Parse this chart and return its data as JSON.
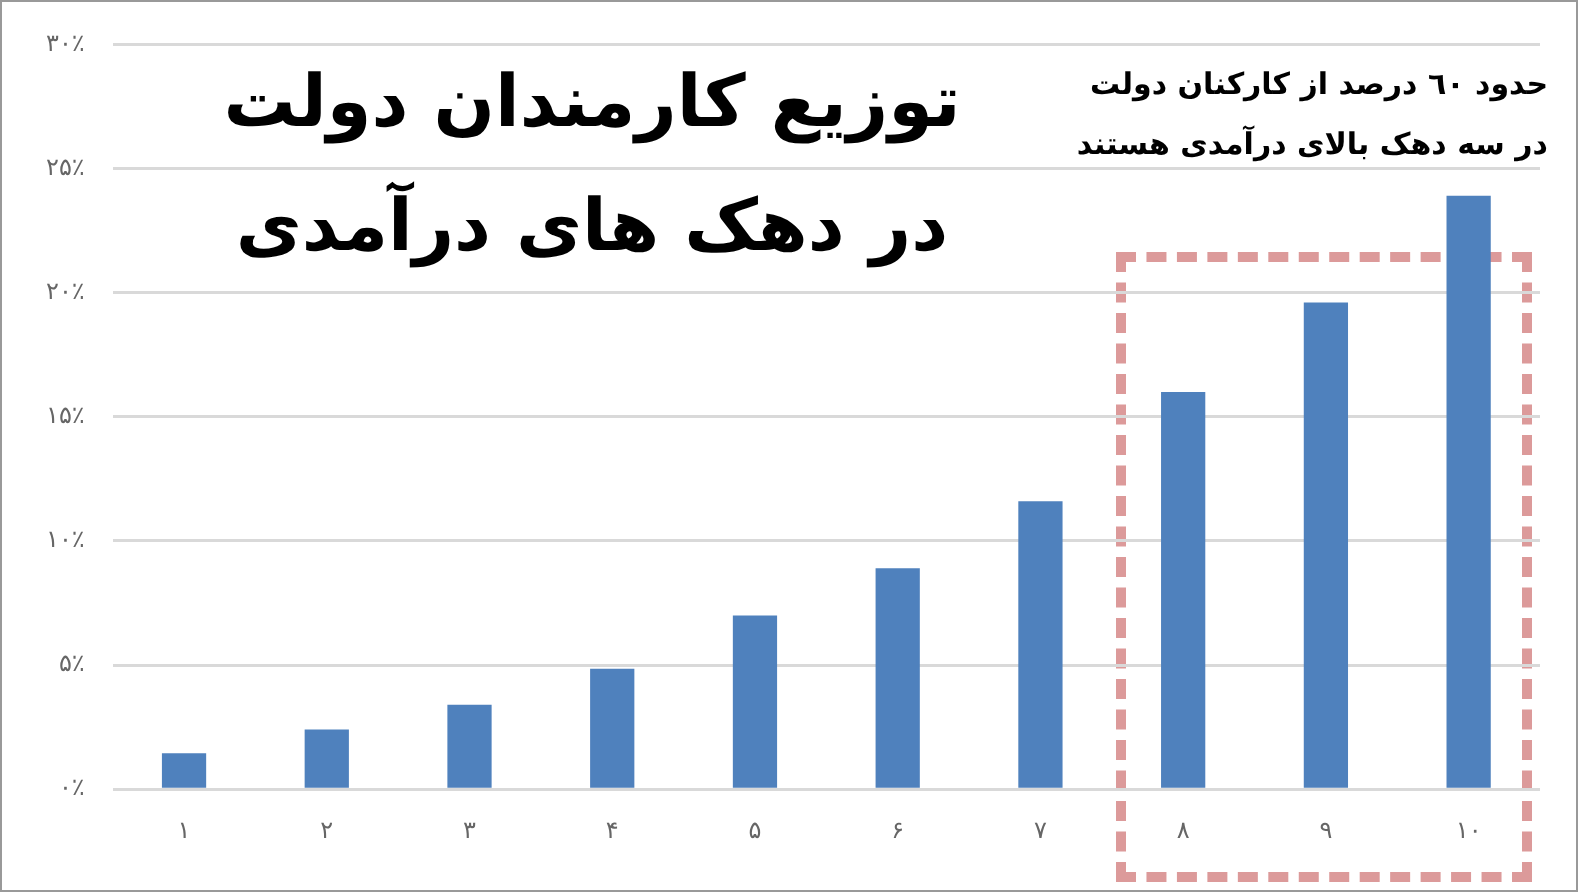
{
  "chart_data": {
    "type": "bar",
    "title": "توزیع کارمندان دولت\nدر دهک های درآمدی",
    "annotations": [
      "حدود ٦٠ درصد از کارکنان دولت\nدر سه دهک بالای درآمدی هستند"
    ],
    "categories": [
      "۱",
      "۲",
      "۳",
      "۴",
      "۵",
      "۶",
      "۷",
      "۸",
      "۹",
      "۱۰"
    ],
    "values": [
      1.45,
      2.4,
      3.4,
      4.85,
      7.0,
      8.9,
      11.6,
      16.0,
      19.6,
      23.9
    ],
    "color": "#4f81bd",
    "ylim": [
      0,
      30
    ],
    "yticks": [
      {
        "value": 0,
        "label": "۰٪"
      },
      {
        "value": 5,
        "label": "۵٪"
      },
      {
        "value": 10,
        "label": "۱۰٪"
      },
      {
        "value": 15,
        "label": "۱۵٪"
      },
      {
        "value": 20,
        "label": "۲۰٪"
      },
      {
        "value": 25,
        "label": "۲۵٪"
      },
      {
        "value": 30,
        "label": "۳۰٪"
      }
    ],
    "grid": "y"
  }
}
